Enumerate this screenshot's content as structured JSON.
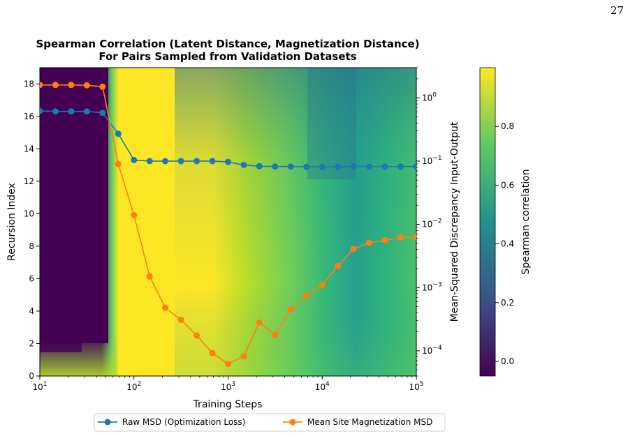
{
  "page": {
    "number": "27"
  },
  "colors": {
    "series_raw": "#1f77b4",
    "series_site": "#ff7f0e",
    "colormap": [
      "#440154",
      "#3b528b",
      "#21918c",
      "#5ec962",
      "#fde725"
    ]
  },
  "chart_data": {
    "type": "heatmap+line",
    "title": "Spearman Correlation (Latent Distance, Magnetization Distance)",
    "subtitle": "For Pairs Sampled from Validation Datasets",
    "xlabel": "Training Steps",
    "ylabel": "Recursion Index",
    "y2label": "Mean-Squared Discrepancy Input-Output",
    "colorbar_label": "Spearman correlation",
    "x_scale": "log",
    "y2_scale": "log",
    "xlim": [
      10,
      100000
    ],
    "ylim": [
      0,
      19
    ],
    "y2lim": [
      4e-05,
      3
    ],
    "x_ticks": [
      {
        "value": 10,
        "base": "10",
        "exp": "1"
      },
      {
        "value": 100,
        "base": "10",
        "exp": "2"
      },
      {
        "value": 1000,
        "base": "10",
        "exp": "3"
      },
      {
        "value": 10000,
        "base": "10",
        "exp": "4"
      },
      {
        "value": 100000,
        "base": "10",
        "exp": "5"
      }
    ],
    "y_ticks": [
      "0",
      "2",
      "4",
      "6",
      "8",
      "10",
      "12",
      "14",
      "16",
      "18"
    ],
    "y2_ticks": [
      {
        "value": 0.0001,
        "base": "10",
        "exp": "−4"
      },
      {
        "value": 0.001,
        "base": "10",
        "exp": "−3"
      },
      {
        "value": 0.01,
        "base": "10",
        "exp": "−2"
      },
      {
        "value": 0.1,
        "base": "10",
        "exp": "−1"
      },
      {
        "value": 1,
        "base": "10",
        "exp": "0"
      }
    ],
    "colorbar_ticks": [
      "0.0",
      "0.2",
      "0.4",
      "0.6",
      "0.8"
    ],
    "colorbar_range": [
      -0.05,
      1.0
    ],
    "heatmap_description_values": {
      "early_low_region": {
        "x_max": 46,
        "y_min": 2,
        "value": -0.05
      },
      "transition_peak": {
        "x_range": [
          100,
          700
        ],
        "value": 0.98
      },
      "late_values": {
        "x": 100000,
        "value": 0.6
      }
    },
    "series": [
      {
        "name": "Raw MSD (Optimization Loss)",
        "x": [
          10,
          14.7,
          21.5,
          31.6,
          46.4,
          68.1,
          100,
          147,
          215,
          316,
          464,
          681,
          1000,
          1470,
          2150,
          3160,
          4640,
          6810,
          10000,
          14700,
          21500,
          31600,
          46400,
          68100,
          100000
        ],
        "y": [
          0.62,
          0.61,
          0.61,
          0.61,
          0.58,
          0.27,
          0.104,
          0.1,
          0.1,
          0.1,
          0.1,
          0.1,
          0.097,
          0.087,
          0.083,
          0.082,
          0.082,
          0.081,
          0.081,
          0.081,
          0.082,
          0.082,
          0.082,
          0.082,
          0.082
        ]
      },
      {
        "name": "Mean Site Magnetization MSD",
        "x": [
          10,
          14.7,
          21.5,
          31.6,
          46.4,
          68.1,
          100,
          147,
          215,
          316,
          464,
          681,
          1000,
          1470,
          2150,
          3160,
          4640,
          6810,
          10000,
          14700,
          21500,
          31600,
          46400,
          68100,
          100000
        ],
        "y": [
          1.6,
          1.6,
          1.6,
          1.58,
          1.5,
          0.09,
          0.014,
          0.0015,
          0.00048,
          0.00031,
          0.000175,
          9.2e-05,
          6.2e-05,
          8.2e-05,
          0.00028,
          0.00018,
          0.00045,
          0.00074,
          0.0011,
          0.0022,
          0.0041,
          0.0051,
          0.0056,
          0.0062,
          0.0063
        ]
      }
    ],
    "legend": {
      "placement": "bottom-center",
      "entries": [
        "Raw MSD (Optimization Loss)",
        "Mean Site Magnetization MSD"
      ]
    }
  }
}
